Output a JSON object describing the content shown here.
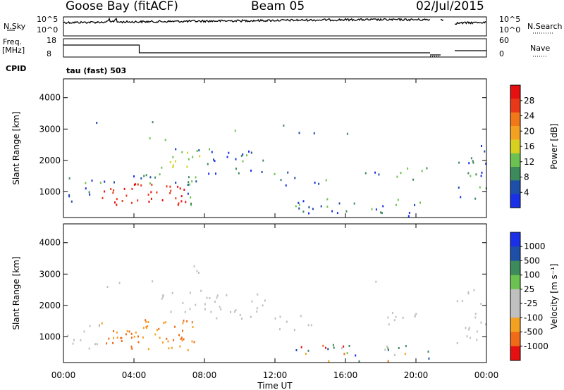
{
  "header": {
    "station": "Goose Bay (fitACF)",
    "beam": "Beam 05",
    "date": "02/Jul/2015"
  },
  "noise": {
    "left_label": "N.Sky",
    "left_ticks": [
      "10^5",
      "10^0"
    ],
    "right_ticks": [
      "10^5",
      "10^0"
    ],
    "right_label": "N.Search"
  },
  "freq": {
    "left_label": "Freq.",
    "unit": "[MHz]",
    "left_ticks": [
      "18",
      "8"
    ],
    "right_ticks": [
      "60",
      "0"
    ],
    "right_label": "Nave"
  },
  "cpid": {
    "label": "CPID",
    "value": "tau (fast) 503"
  },
  "colors": {
    "power": [
      "#1a30e8",
      "#1d4fa8",
      "#3d8a5c",
      "#6cc250",
      "#d8d020",
      "#f4a020",
      "#f07818",
      "#e83818",
      "#e61010"
    ],
    "velocity": [
      "#e61010",
      "#f06a18",
      "#f4a020",
      "#c0c0c0",
      "#c0c0c0",
      "#6cc250",
      "#3d8a5c",
      "#1d4fa8",
      "#1a30e8"
    ]
  },
  "chart_data": [
    {
      "type": "heatmap",
      "panel": "power",
      "ylabel": "Slant Range [km]",
      "xlabel": "Time UT",
      "x_ticks": [
        "00:00",
        "04:00",
        "08:00",
        "12:00",
        "16:00",
        "20:00",
        "00:00"
      ],
      "xlim": [
        0,
        24
      ],
      "y_ticks": [
        "1000",
        "2000",
        "3000",
        "4000"
      ],
      "ylim": [
        180,
        4600
      ],
      "colorbar_label": "Power [dB]",
      "colorbar_ticks": [
        "28",
        "24",
        "20",
        "16",
        "12",
        "8",
        "4"
      ],
      "colorbar_range": [
        0,
        32
      ],
      "data_gap_hours": [
        [
          20.8,
          21.4
        ],
        [
          21.6,
          22.2
        ]
      ]
    },
    {
      "type": "heatmap",
      "panel": "velocity",
      "ylabel": "Slant Range [km]",
      "xlabel": "Time UT",
      "x_ticks": [
        "00:00",
        "04:00",
        "08:00",
        "12:00",
        "16:00",
        "20:00",
        "00:00"
      ],
      "xlim": [
        0,
        24
      ],
      "y_ticks": [
        "1000",
        "2000",
        "3000",
        "4000"
      ],
      "ylim": [
        180,
        4600
      ],
      "colorbar_label": "Velocity [m s⁻¹]",
      "colorbar_ticks": [
        "1000",
        "500",
        "100",
        "25",
        "-25",
        "-100",
        "-500",
        "-1000"
      ],
      "data_gap_hours": [
        [
          20.8,
          21.4
        ],
        [
          21.6,
          22.2
        ]
      ]
    }
  ]
}
